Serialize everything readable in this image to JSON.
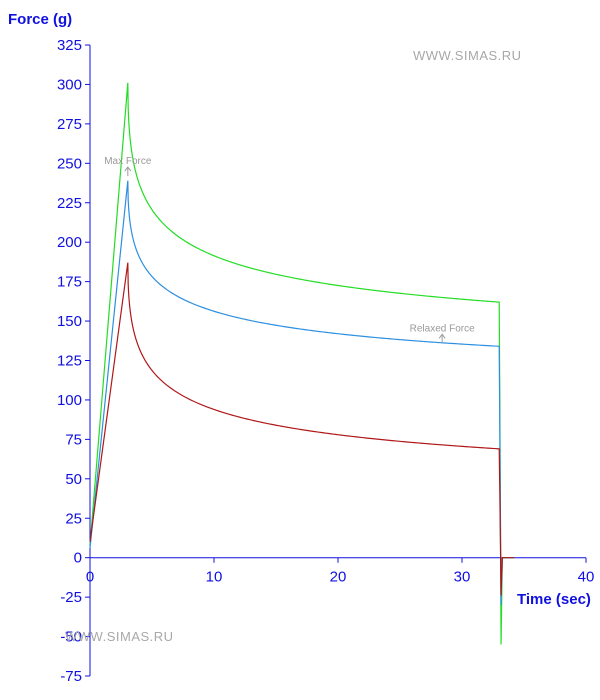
{
  "watermark": {
    "top": "WWW.SIMAS.RU",
    "bottom": "WWW.SIMAS.RU"
  },
  "chart_data": {
    "type": "line",
    "title": "",
    "xlabel": "Time (sec)",
    "ylabel": "Force (g)",
    "xlim": [
      0,
      40
    ],
    "ylim": [
      -75,
      325
    ],
    "x_ticks": [
      0,
      10,
      20,
      30,
      40
    ],
    "y_ticks": [
      325,
      300,
      275,
      250,
      225,
      200,
      175,
      150,
      125,
      100,
      75,
      50,
      25,
      0,
      -25,
      -50,
      -75
    ],
    "grid": false,
    "annotations": [
      {
        "text": "Max Force",
        "x": 3.05,
        "y": 240
      },
      {
        "text": "Relaxed Force",
        "x": 28.4,
        "y": 134
      }
    ],
    "series": [
      {
        "color": "#22dd22",
        "peak_time": 3.05,
        "peak": 301,
        "start": 8,
        "final": 162,
        "end_time": 33.0,
        "undershoot": -55,
        "settle": 0
      },
      {
        "color": "#2d8fe0",
        "peak_time": 3.05,
        "peak": 239,
        "start": 6,
        "final": 134,
        "end_time": 33.0,
        "undershoot": -30,
        "settle": 0
      },
      {
        "color": "#b01818",
        "peak_time": 3.05,
        "peak": 187,
        "start": 10,
        "final": 69,
        "end_time": 33.0,
        "undershoot": -24,
        "settle": 0
      }
    ]
  }
}
